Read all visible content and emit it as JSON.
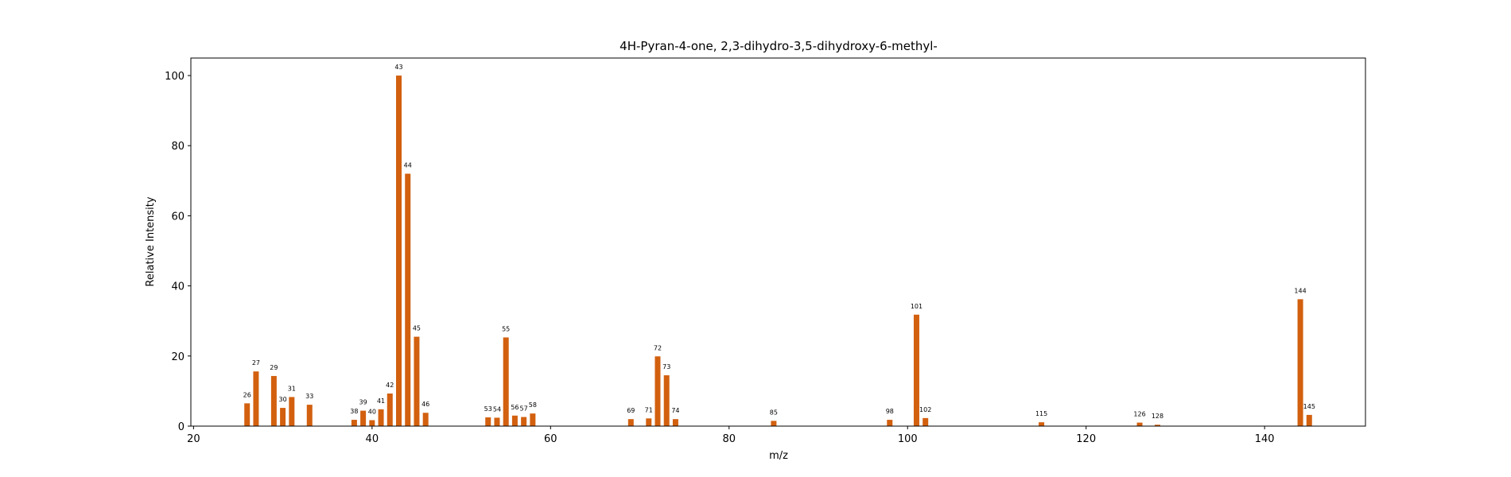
{
  "chart_data": {
    "type": "bar",
    "title": "4H-Pyran-4-one, 2,3-dihydro-3,5-dihydroxy-6-methyl-",
    "xlabel": "m/z",
    "ylabel": "Relative Intensity",
    "xlim": [
      19.7,
      151.3
    ],
    "ylim": [
      0,
      105
    ],
    "xticks": [
      20,
      40,
      60,
      80,
      100,
      120,
      140
    ],
    "yticks": [
      0,
      20,
      40,
      60,
      80,
      100
    ],
    "grid": false,
    "bar_color": "#d2600f",
    "peaks": [
      {
        "mz": 26,
        "intensity": 6.5,
        "label": "26"
      },
      {
        "mz": 27,
        "intensity": 15.6,
        "label": "27"
      },
      {
        "mz": 29,
        "intensity": 14.3,
        "label": "29"
      },
      {
        "mz": 30,
        "intensity": 5.2,
        "label": "30"
      },
      {
        "mz": 31,
        "intensity": 8.3,
        "label": "31"
      },
      {
        "mz": 33,
        "intensity": 6.1,
        "label": "33"
      },
      {
        "mz": 38,
        "intensity": 1.8,
        "label": "38"
      },
      {
        "mz": 39,
        "intensity": 4.4,
        "label": "39"
      },
      {
        "mz": 40,
        "intensity": 1.7,
        "label": "40"
      },
      {
        "mz": 41,
        "intensity": 4.8,
        "label": "41"
      },
      {
        "mz": 42,
        "intensity": 9.3,
        "label": "42"
      },
      {
        "mz": 43,
        "intensity": 100,
        "label": "43"
      },
      {
        "mz": 44,
        "intensity": 72,
        "label": "44"
      },
      {
        "mz": 45,
        "intensity": 25.5,
        "label": "45"
      },
      {
        "mz": 46,
        "intensity": 3.8,
        "label": "46"
      },
      {
        "mz": 53,
        "intensity": 2.5,
        "label": "53"
      },
      {
        "mz": 54,
        "intensity": 2.4,
        "label": "54"
      },
      {
        "mz": 55,
        "intensity": 25.3,
        "label": "55"
      },
      {
        "mz": 56,
        "intensity": 3.0,
        "label": "56"
      },
      {
        "mz": 57,
        "intensity": 2.6,
        "label": "57"
      },
      {
        "mz": 58,
        "intensity": 3.6,
        "label": "58"
      },
      {
        "mz": 69,
        "intensity": 2.0,
        "label": "69"
      },
      {
        "mz": 71,
        "intensity": 2.2,
        "label": "71"
      },
      {
        "mz": 72,
        "intensity": 19.9,
        "label": "72"
      },
      {
        "mz": 73,
        "intensity": 14.5,
        "label": "73"
      },
      {
        "mz": 74,
        "intensity": 2.0,
        "label": "74"
      },
      {
        "mz": 85,
        "intensity": 1.5,
        "label": "85"
      },
      {
        "mz": 98,
        "intensity": 1.8,
        "label": "98"
      },
      {
        "mz": 101,
        "intensity": 31.8,
        "label": "101"
      },
      {
        "mz": 102,
        "intensity": 2.3,
        "label": "102"
      },
      {
        "mz": 115,
        "intensity": 1.1,
        "label": "115"
      },
      {
        "mz": 126,
        "intensity": 1.0,
        "label": "126"
      },
      {
        "mz": 128,
        "intensity": 0.4,
        "label": "128"
      },
      {
        "mz": 144,
        "intensity": 36.2,
        "label": "144"
      },
      {
        "mz": 145,
        "intensity": 3.2,
        "label": "145"
      }
    ]
  }
}
